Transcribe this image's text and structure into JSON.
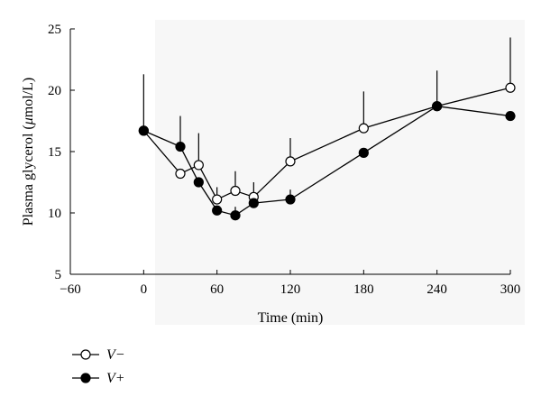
{
  "chart_data": {
    "type": "line",
    "title": "",
    "xlabel": "Time (min)",
    "ylabel_prefix": "Plasma glycerol (",
    "ylabel_mu": "μ",
    "ylabel_suffix": "mol/L)",
    "xlim": [
      -60,
      300
    ],
    "ylim": [
      5,
      25
    ],
    "xticks": [
      -60,
      0,
      60,
      120,
      180,
      240,
      300
    ],
    "xtick_labels": [
      "−60",
      "0",
      "60",
      "120",
      "180",
      "240",
      "300"
    ],
    "yticks": [
      5,
      10,
      15,
      20,
      25
    ],
    "ytick_labels": [
      "5",
      "10",
      "15",
      "20",
      "25"
    ],
    "x": [
      0,
      30,
      45,
      60,
      75,
      90,
      120,
      180,
      240,
      300
    ],
    "series": [
      {
        "name": "V−",
        "marker": "open-circle",
        "color": "#000000",
        "values": [
          16.7,
          13.2,
          13.9,
          11.1,
          11.8,
          11.3,
          14.2,
          16.9,
          18.7,
          20.2
        ],
        "error_up": [
          4.6,
          0,
          2.6,
          1.0,
          1.6,
          1.2,
          1.9,
          3.0,
          0,
          4.1
        ]
      },
      {
        "name": "V+",
        "marker": "filled-circle",
        "color": "#000000",
        "values": [
          16.7,
          15.4,
          12.5,
          10.2,
          9.8,
          10.8,
          11.1,
          14.9,
          18.7,
          17.9
        ],
        "error_up": [
          0,
          2.5,
          0,
          0,
          0.7,
          0,
          0.8,
          0,
          2.9,
          0
        ]
      }
    ],
    "legend_position": "bottom-left",
    "grid": false
  }
}
